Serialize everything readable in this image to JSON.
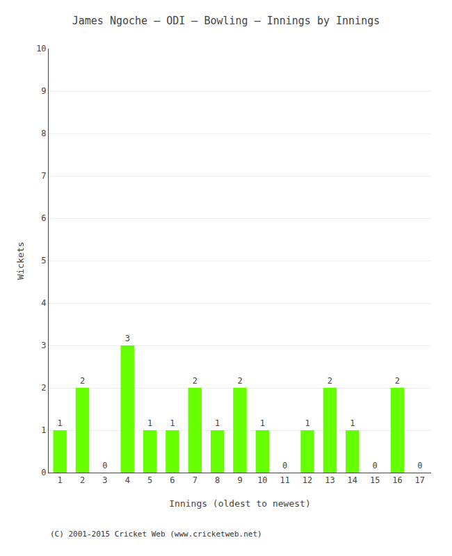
{
  "chart_data": {
    "type": "bar",
    "title": "James Ngoche – ODI – Bowling – Innings by Innings",
    "xlabel": "Innings (oldest to newest)",
    "ylabel": "Wickets",
    "categories": [
      "1",
      "2",
      "3",
      "4",
      "5",
      "6",
      "7",
      "8",
      "9",
      "10",
      "11",
      "12",
      "13",
      "14",
      "15",
      "16",
      "17"
    ],
    "values": [
      1,
      2,
      0,
      3,
      1,
      1,
      2,
      1,
      2,
      1,
      0,
      1,
      2,
      1,
      0,
      2,
      0
    ],
    "color": "#66ff00",
    "ylim": [
      0,
      10
    ],
    "yticks": [
      0,
      1,
      2,
      3,
      4,
      5,
      6,
      7,
      8,
      9,
      10
    ],
    "grid": true,
    "data_labels": true,
    "annotations": [
      "(C) 2001-2015 Cricket Web (www.cricketweb.net)"
    ]
  }
}
